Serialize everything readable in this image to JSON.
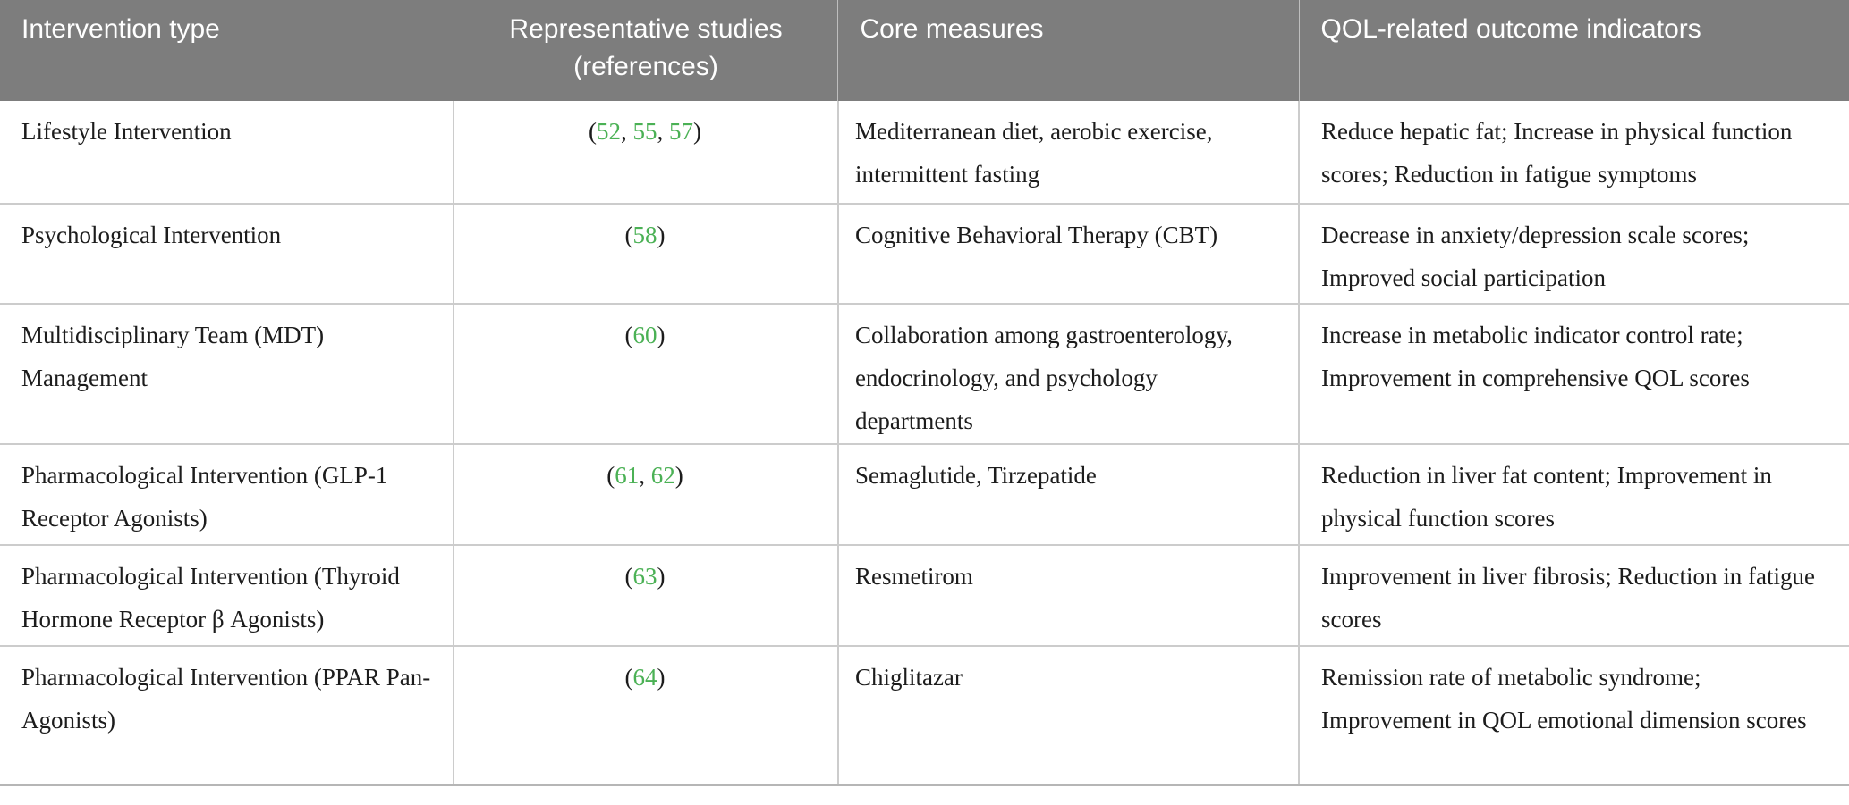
{
  "theme": {
    "header_bg": "#7d7d7d",
    "header_text": "#ffffff",
    "body_text": "#1c1c1c",
    "reference_green": "#4bb155",
    "grid_line": "#cccccc",
    "bottom_line": "#b6b6b6",
    "page_bg": "#ffffff"
  },
  "table": {
    "columns": [
      {
        "label": "Intervention type",
        "align": "left"
      },
      {
        "label": "Representative studies (references)",
        "align": "center"
      },
      {
        "label": "Core measures",
        "align": "left"
      },
      {
        "label": "QOL-related outcome indicators",
        "align": "left"
      }
    ],
    "rows": [
      {
        "intervention": "Lifestyle Intervention",
        "references": [
          "52",
          "55",
          "57"
        ],
        "core_measures": "Mediterranean diet, aerobic exercise, intermittent fasting",
        "qol_outcomes": "Reduce hepatic fat; Increase in physical function scores; Reduction in fatigue symptoms"
      },
      {
        "intervention": "Psychological Intervention",
        "references": [
          "58"
        ],
        "core_measures": "Cognitive Behavioral Therapy (CBT)",
        "qol_outcomes": "Decrease in anxiety/depression scale scores; Improved social participation"
      },
      {
        "intervention": "Multidisciplinary Team (MDT) Management",
        "references": [
          "60"
        ],
        "core_measures": "Collaboration among gastroenterology, endocrinology, and psychology departments",
        "qol_outcomes": "Increase in metabolic indicator control rate; Improvement in comprehensive QOL scores"
      },
      {
        "intervention": "Pharmacological Intervention (GLP-1 Receptor Agonists)",
        "references": [
          "61",
          "62"
        ],
        "core_measures": "Semaglutide, Tirzepatide",
        "qol_outcomes": "Reduction in liver fat content; Improvement in physical function scores"
      },
      {
        "intervention": "Pharmacological Intervention (Thyroid Hormone Receptor β Agonists)",
        "references": [
          "63"
        ],
        "core_measures": "Resmetirom",
        "qol_outcomes": "Improvement in liver fibrosis; Reduction in fatigue scores"
      },
      {
        "intervention": "Pharmacological Intervention (PPAR Pan-Agonists)",
        "references": [
          "64"
        ],
        "core_measures": "Chiglitazar",
        "qol_outcomes": "Remission rate of metabolic syndrome; Improvement in QOL emotional dimension scores"
      }
    ]
  }
}
